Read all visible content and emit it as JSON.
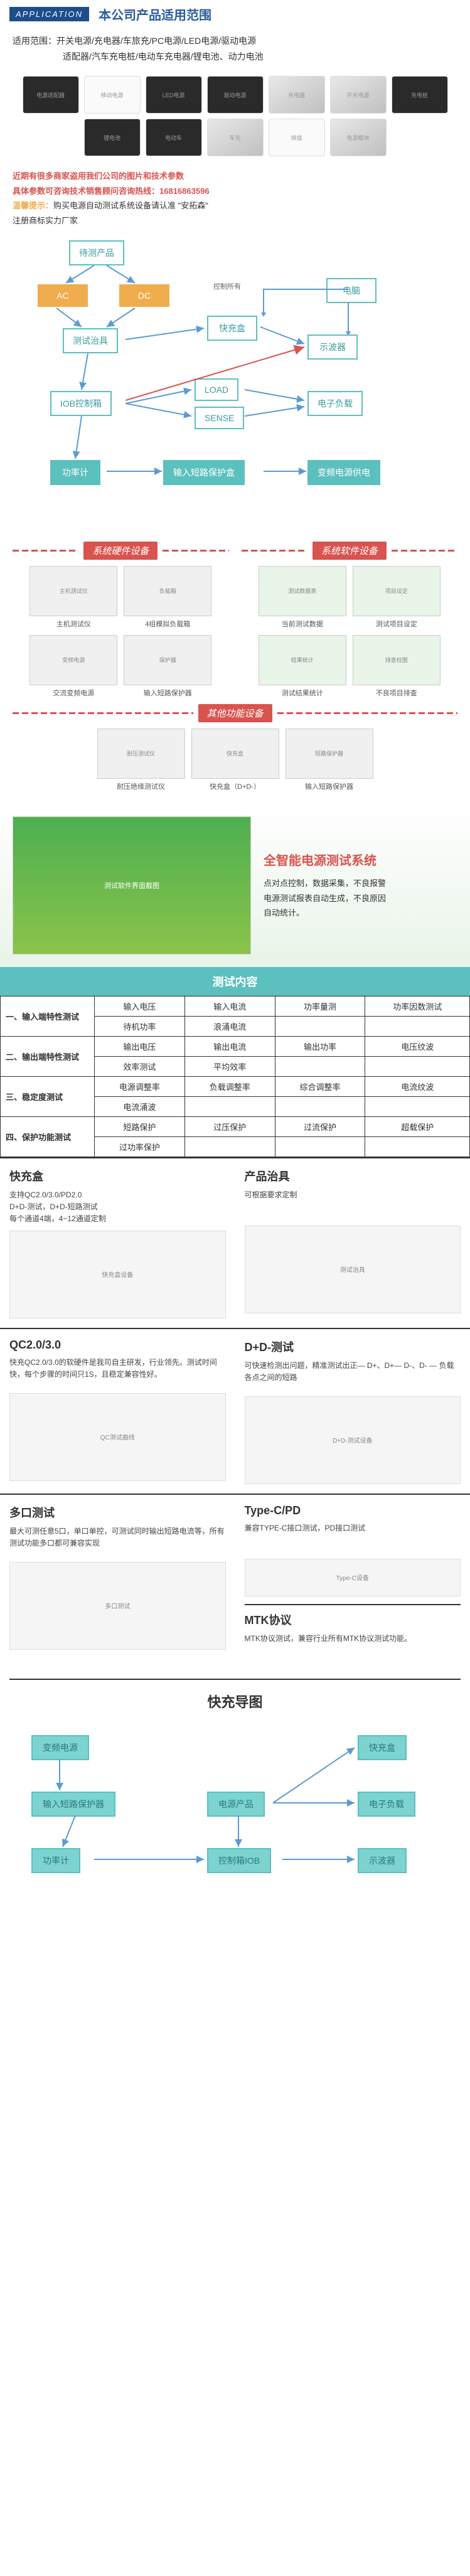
{
  "app_header": {
    "tab": "APPLICATION",
    "title": "本公司产品适用范围"
  },
  "scope": {
    "label": "适用范围：",
    "line1": "开关电源/充电器/车旅充/PC电源/LED电源/驱动电源",
    "line2": "适配器/汽车充电桩/电动车充电器/锂电池、动力电池"
  },
  "warning": {
    "l1": "近期有很多商家盗用我们公司的图片和技术参数",
    "l2a": "具体参数可咨询技术销售顾问咨询热线：",
    "phone": "16816863596",
    "l3a": "温馨提示：",
    "l3b": "购买电源自动测试系统设备请认准 \"安拓森\"",
    "l4": "注册商标实力厂家"
  },
  "flow1": {
    "control_label": "控制所有",
    "nodes": {
      "dut": "待测产品",
      "ac": "AC",
      "dc": "DC",
      "pc": "电脑",
      "fixture": "测试治具",
      "qcbox": "快充盒",
      "scope": "示波器",
      "iob": "IOB控制箱",
      "load": "LOAD",
      "sense": "SENSE",
      "eload": "电子负载",
      "pmeter": "功率计",
      "protect": "输入短路保护盒",
      "vpsu": "变频电源供电"
    }
  },
  "equip": {
    "hw_title": "系统硬件设备",
    "sw_title": "系统软件设备",
    "other_title": "其他功能设备",
    "hw": [
      {
        "cap": "主机测试仪"
      },
      {
        "cap": "4组模拟负载箱"
      },
      {
        "cap": "交流变频电源"
      },
      {
        "cap": "输入短路保护器"
      }
    ],
    "sw": [
      {
        "cap": "当前测试数据"
      },
      {
        "cap": "测试项目设定"
      },
      {
        "cap": "测试结果统计"
      },
      {
        "cap": "不良项目排查"
      }
    ],
    "other": [
      {
        "cap": "耐压绝缘测试仪"
      },
      {
        "cap": "快充盒（D+D-）"
      },
      {
        "cap": "输入短路保护器"
      }
    ]
  },
  "smart": {
    "title": "全智能电源测试系统",
    "desc": "点对点控制，数据采集，不良报警\n电源测试报表自动生成，不良原因\n自动统计。"
  },
  "table": {
    "header": "测试内容",
    "rows": [
      {
        "h": "一、输入端特性测试",
        "c": [
          "输入电压",
          "输入电流",
          "功率量测",
          "功率因数测试"
        ]
      },
      {
        "h": "",
        "c": [
          "待机功率",
          "浪涌电流",
          "",
          ""
        ]
      },
      {
        "h": "二、输出端特性测试",
        "c": [
          "输出电压",
          "输出电流",
          "输出功率",
          "电压纹波"
        ]
      },
      {
        "h": "",
        "c": [
          "效率测试",
          "平均效率",
          "",
          ""
        ]
      },
      {
        "h": "三、稳定度测试",
        "c": [
          "电源调整率",
          "负载调整率",
          "综合调整率",
          "电流纹波"
        ]
      },
      {
        "h": "",
        "c": [
          "电流涌波",
          "",
          "",
          ""
        ]
      },
      {
        "h": "四、保护功能测试",
        "c": [
          "短路保护",
          "过压保护",
          "过流保护",
          "超载保护"
        ]
      },
      {
        "h": "",
        "c": [
          "过功率保护",
          "",
          "",
          ""
        ]
      }
    ]
  },
  "features": [
    {
      "title": "快充盒",
      "desc": "支持QC2.0/3.0/PD2.0\nD+D-测试，D+D-短路测试\n每个通道4端，4~12通道定制",
      "img": "快充盒设备"
    },
    {
      "title": "产品治具",
      "desc": "可根据要求定制",
      "img": "测试治具"
    },
    {
      "title": "QC2.0/3.0",
      "desc": "快充QC2.0/3.0的软硬件是我司自主研发，行业领先。测试时间快，每个步骤的时间只1S，且稳定兼容性好。",
      "img": "QC测试曲线"
    },
    {
      "title": "D+D-测试",
      "desc": "可快速检测出问题，精准测试出正— D+、D+— D-、D- — 负载各点之间的短路",
      "img": "D+D-测试设备"
    },
    {
      "title": "多口测试",
      "desc": "最大可测任意5口，单口单控，可测试同时输出短路电流等，所有测试功能多口都可兼容实现",
      "img": "多口测试"
    },
    {
      "title": "Type-C/PD",
      "desc": "兼容TYPE-C接口测试，PD接口测试",
      "img": "Type-C设备",
      "sub": "MTK协议",
      "subdesc": "MTK协议测试，兼容行业所有MTK协议测试功能。"
    }
  ],
  "flow2": {
    "title": "快充导图",
    "nodes": {
      "vpsu": "变频电源",
      "protect": "输入短路保护器",
      "pmeter": "功率计",
      "product": "电源产品",
      "qcbox": "快充盒",
      "iob": "控制箱IOB",
      "eload": "电子负载",
      "scope": "示波器"
    }
  },
  "colors": {
    "teal": "#5bc0be",
    "red": "#d9534f",
    "blue": "#5b9bd5",
    "orange": "#f0ad4e"
  }
}
